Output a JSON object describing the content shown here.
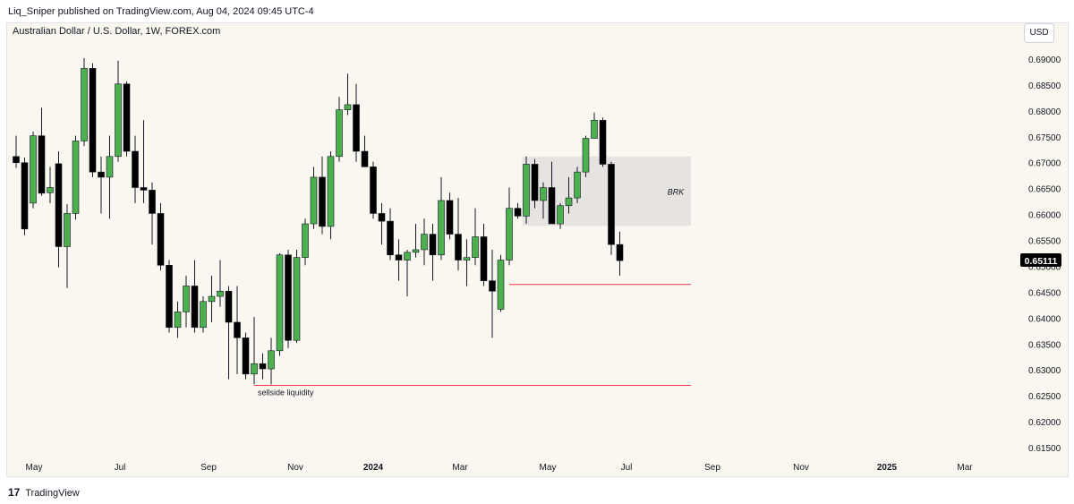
{
  "header": {
    "published_by": "Liq_Sniper published on TradingView.com, Aug 04, 2024 09:45 UTC-4"
  },
  "chart_header": {
    "symbol": "Australian Dollar / U.S. Dollar, 1W, FOREX.com",
    "currency_button": "USD"
  },
  "footer": {
    "logo_glyph": "17",
    "brand": "TradingView"
  },
  "colors": {
    "bull": "#4caf50",
    "bear": "#000000",
    "wick": "#131722",
    "liquidity_line": "#f23645",
    "zone_fill": "#e6e3e1",
    "price_label_bg": "#000000"
  },
  "chart_data": {
    "type": "candlestick",
    "x_ticks": [
      "May",
      "Jul",
      "Sep",
      "Nov",
      "2024",
      "Mar",
      "May",
      "Jul",
      "Sep",
      "Nov",
      "2025",
      "Mar"
    ],
    "y_ticks": [
      "0.69000",
      "0.68500",
      "0.68000",
      "0.67500",
      "0.67000",
      "0.66500",
      "0.66000",
      "0.65500",
      "0.65000",
      "0.64500",
      "0.64000",
      "0.63500",
      "0.63000",
      "0.62500",
      "0.62000",
      "0.61500"
    ],
    "ylim": [
      0.6115,
      0.6935
    ],
    "candles": [
      {
        "o": 0.6712,
        "h": 0.6752,
        "l": 0.669,
        "c": 0.67
      },
      {
        "o": 0.67,
        "h": 0.671,
        "l": 0.656,
        "c": 0.6572
      },
      {
        "o": 0.6622,
        "h": 0.676,
        "l": 0.6612,
        "c": 0.6752
      },
      {
        "o": 0.6752,
        "h": 0.6806,
        "l": 0.6636,
        "c": 0.6641
      },
      {
        "o": 0.6642,
        "h": 0.6692,
        "l": 0.6622,
        "c": 0.6652
      },
      {
        "o": 0.6698,
        "h": 0.6722,
        "l": 0.6498,
        "c": 0.6538
      },
      {
        "o": 0.6538,
        "h": 0.662,
        "l": 0.6458,
        "c": 0.6602
      },
      {
        "o": 0.6602,
        "h": 0.6752,
        "l": 0.659,
        "c": 0.6742
      },
      {
        "o": 0.6742,
        "h": 0.6902,
        "l": 0.6732,
        "c": 0.6882
      },
      {
        "o": 0.6882,
        "h": 0.6892,
        "l": 0.6672,
        "c": 0.6682
      },
      {
        "o": 0.6682,
        "h": 0.6712,
        "l": 0.6602,
        "c": 0.6672
      },
      {
        "o": 0.6672,
        "h": 0.6752,
        "l": 0.6592,
        "c": 0.6712
      },
      {
        "o": 0.6712,
        "h": 0.6897,
        "l": 0.6702,
        "c": 0.6852
      },
      {
        "o": 0.6852,
        "h": 0.6857,
        "l": 0.6712,
        "c": 0.6722
      },
      {
        "o": 0.6722,
        "h": 0.6752,
        "l": 0.6622,
        "c": 0.6652
      },
      {
        "o": 0.6652,
        "h": 0.6782,
        "l": 0.6622,
        "c": 0.6647
      },
      {
        "o": 0.6647,
        "h": 0.6662,
        "l": 0.6542,
        "c": 0.6602
      },
      {
        "o": 0.6602,
        "h": 0.6622,
        "l": 0.6492,
        "c": 0.6502
      },
      {
        "o": 0.6502,
        "h": 0.6512,
        "l": 0.6372,
        "c": 0.6382
      },
      {
        "o": 0.6382,
        "h": 0.6432,
        "l": 0.6362,
        "c": 0.6412
      },
      {
        "o": 0.6412,
        "h": 0.6482,
        "l": 0.6382,
        "c": 0.6462
      },
      {
        "o": 0.6462,
        "h": 0.6512,
        "l": 0.6372,
        "c": 0.6382
      },
      {
        "o": 0.6382,
        "h": 0.6442,
        "l": 0.6372,
        "c": 0.6432
      },
      {
        "o": 0.6432,
        "h": 0.6482,
        "l": 0.6392,
        "c": 0.6442
      },
      {
        "o": 0.6442,
        "h": 0.6512,
        "l": 0.6422,
        "c": 0.6452
      },
      {
        "o": 0.6452,
        "h": 0.6462,
        "l": 0.6282,
        "c": 0.6392
      },
      {
        "o": 0.6392,
        "h": 0.6462,
        "l": 0.6292,
        "c": 0.6362
      },
      {
        "o": 0.6362,
        "h": 0.6372,
        "l": 0.6282,
        "c": 0.6292
      },
      {
        "o": 0.6292,
        "h": 0.6402,
        "l": 0.6272,
        "c": 0.6312
      },
      {
        "o": 0.6312,
        "h": 0.6332,
        "l": 0.6282,
        "c": 0.6302
      },
      {
        "o": 0.6302,
        "h": 0.6362,
        "l": 0.6272,
        "c": 0.6337
      },
      {
        "o": 0.6337,
        "h": 0.6525,
        "l": 0.6327,
        "c": 0.6522
      },
      {
        "o": 0.6522,
        "h": 0.6532,
        "l": 0.6342,
        "c": 0.6357
      },
      {
        "o": 0.6357,
        "h": 0.6532,
        "l": 0.6352,
        "c": 0.6517
      },
      {
        "o": 0.6517,
        "h": 0.6592,
        "l": 0.6502,
        "c": 0.6582
      },
      {
        "o": 0.6582,
        "h": 0.6692,
        "l": 0.6572,
        "c": 0.6672
      },
      {
        "o": 0.6672,
        "h": 0.6712,
        "l": 0.6562,
        "c": 0.6577
      },
      {
        "o": 0.6577,
        "h": 0.6722,
        "l": 0.6552,
        "c": 0.6712
      },
      {
        "o": 0.6712,
        "h": 0.6827,
        "l": 0.6702,
        "c": 0.6802
      },
      {
        "o": 0.6802,
        "h": 0.6872,
        "l": 0.6792,
        "c": 0.6812
      },
      {
        "o": 0.6812,
        "h": 0.6852,
        "l": 0.6702,
        "c": 0.6722
      },
      {
        "o": 0.6722,
        "h": 0.6752,
        "l": 0.6692,
        "c": 0.6692
      },
      {
        "o": 0.6692,
        "h": 0.6702,
        "l": 0.6592,
        "c": 0.6602
      },
      {
        "o": 0.6602,
        "h": 0.6622,
        "l": 0.6542,
        "c": 0.6587
      },
      {
        "o": 0.6587,
        "h": 0.6612,
        "l": 0.6512,
        "c": 0.6522
      },
      {
        "o": 0.6522,
        "h": 0.6552,
        "l": 0.6472,
        "c": 0.6512
      },
      {
        "o": 0.6512,
        "h": 0.6532,
        "l": 0.6442,
        "c": 0.6527
      },
      {
        "o": 0.6527,
        "h": 0.6582,
        "l": 0.6517,
        "c": 0.6532
      },
      {
        "o": 0.6532,
        "h": 0.6592,
        "l": 0.6502,
        "c": 0.6562
      },
      {
        "o": 0.6562,
        "h": 0.6582,
        "l": 0.6472,
        "c": 0.6522
      },
      {
        "o": 0.6522,
        "h": 0.6672,
        "l": 0.6512,
        "c": 0.6627
      },
      {
        "o": 0.6627,
        "h": 0.6642,
        "l": 0.6552,
        "c": 0.6562
      },
      {
        "o": 0.6562,
        "h": 0.6632,
        "l": 0.6492,
        "c": 0.6512
      },
      {
        "o": 0.6512,
        "h": 0.6552,
        "l": 0.6462,
        "c": 0.6517
      },
      {
        "o": 0.6517,
        "h": 0.6612,
        "l": 0.6502,
        "c": 0.6557
      },
      {
        "o": 0.6557,
        "h": 0.6582,
        "l": 0.6462,
        "c": 0.6472
      },
      {
        "o": 0.6472,
        "h": 0.6532,
        "l": 0.6362,
        "c": 0.6452
      },
      {
        "o": 0.6417,
        "h": 0.6522,
        "l": 0.6412,
        "c": 0.6512
      },
      {
        "o": 0.6512,
        "h": 0.6652,
        "l": 0.6502,
        "c": 0.6612
      },
      {
        "o": 0.6612,
        "h": 0.6622,
        "l": 0.6592,
        "c": 0.6597
      },
      {
        "o": 0.6597,
        "h": 0.6712,
        "l": 0.6582,
        "c": 0.6697
      },
      {
        "o": 0.6697,
        "h": 0.6707,
        "l": 0.6612,
        "c": 0.6627
      },
      {
        "o": 0.6627,
        "h": 0.6662,
        "l": 0.6592,
        "c": 0.6652
      },
      {
        "o": 0.6652,
        "h": 0.6702,
        "l": 0.6582,
        "c": 0.6582
      },
      {
        "o": 0.6582,
        "h": 0.6622,
        "l": 0.6572,
        "c": 0.6617
      },
      {
        "o": 0.6617,
        "h": 0.6672,
        "l": 0.6602,
        "c": 0.6632
      },
      {
        "o": 0.6632,
        "h": 0.6692,
        "l": 0.6622,
        "c": 0.6682
      },
      {
        "o": 0.6682,
        "h": 0.6752,
        "l": 0.6672,
        "c": 0.6747
      },
      {
        "o": 0.6747,
        "h": 0.6797,
        "l": 0.6747,
        "c": 0.6782
      },
      {
        "o": 0.6782,
        "h": 0.6787,
        "l": 0.6692,
        "c": 0.6697
      },
      {
        "o": 0.6697,
        "h": 0.6702,
        "l": 0.6522,
        "c": 0.6542
      },
      {
        "o": 0.6542,
        "h": 0.6567,
        "l": 0.6482,
        "c": 0.6511
      }
    ],
    "last_price": 0.65111,
    "last_price_label": "0.65111",
    "zone": {
      "label": "BRK",
      "from_candle": 60,
      "to_candle": 79,
      "top": 0.6712,
      "bottom": 0.6578
    },
    "levels": [
      {
        "name": "sellside-liquidity-line",
        "price": 0.627,
        "from_candle": 28,
        "to_candle": 79,
        "label": "sellside liquidity"
      },
      {
        "name": "low-liquidity-line",
        "price": 0.6465,
        "from_candle": 58,
        "to_candle": 79,
        "label": ""
      }
    ]
  }
}
